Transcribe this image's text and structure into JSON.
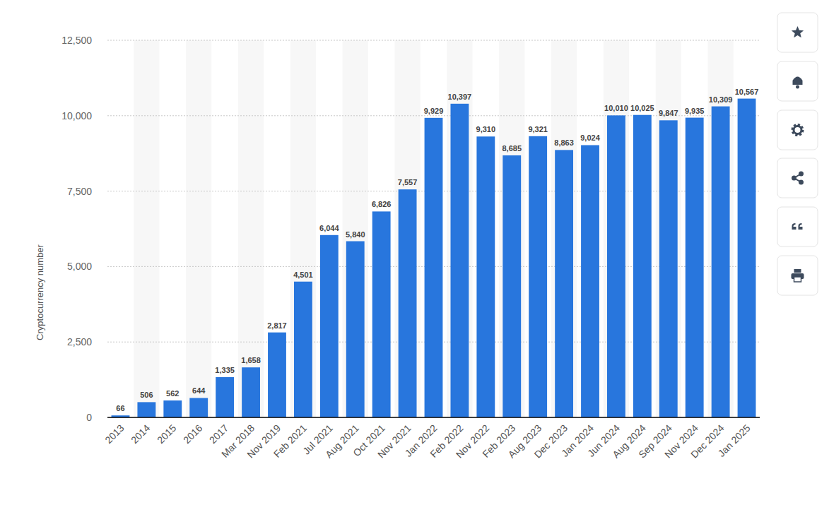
{
  "chart_data": {
    "type": "bar",
    "y_label": "Cryptocurrency number",
    "categories": [
      "2013",
      "2014",
      "2015",
      "2016",
      "2017",
      "Mar 2018",
      "Nov 2019",
      "Feb 2021",
      "Jul 2021",
      "Aug 2021",
      "Oct 2021",
      "Nov 2021",
      "Jan 2022",
      "Feb 2022",
      "Nov 2022",
      "Feb 2023",
      "Aug 2023",
      "Dec 2023",
      "Jan 2024",
      "Jun 2024",
      "Aug 2024",
      "Sep 2024",
      "Nov 2024",
      "Dec 2024",
      "Jan 2025"
    ],
    "values": [
      66,
      506,
      562,
      644,
      1335,
      1658,
      2817,
      4501,
      6044,
      5840,
      6826,
      7557,
      9929,
      10397,
      9310,
      8685,
      9321,
      8863,
      9024,
      10010,
      10025,
      9847,
      9935,
      10309,
      10567
    ],
    "value_labels": [
      "66",
      "506",
      "562",
      "644",
      "1,335",
      "1,658",
      "2,817",
      "4,501",
      "6,044",
      "5,840",
      "6,826",
      "7,557",
      "9,929",
      "10,397",
      "9,310",
      "8,685",
      "9,321",
      "8,863",
      "9,024",
      "10,010",
      "10,025",
      "9,847",
      "9,935",
      "10,309",
      "10,567"
    ],
    "color": "#2876dd",
    "ylim": [
      0,
      12500
    ],
    "yticks": [
      0,
      {
        "value": 2500,
        "label": "2,500"
      },
      {
        "value": 5000,
        "label": "5,000"
      },
      {
        "value": 7500,
        "label": "7,500"
      },
      {
        "value": 10000,
        "label": "10,000"
      },
      {
        "value": 12500,
        "label": "12,500"
      }
    ],
    "grid": true,
    "data_labels": true
  }
}
